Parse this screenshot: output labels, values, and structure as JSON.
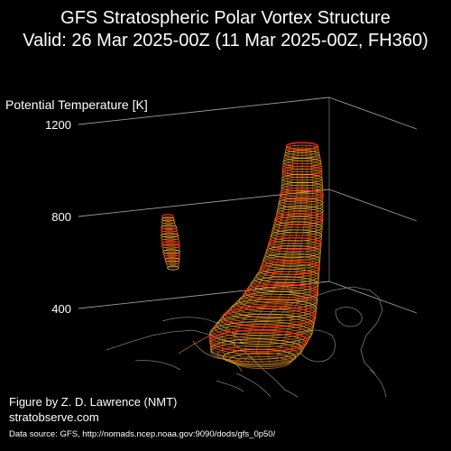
{
  "header": {
    "title_line1": "GFS Stratospheric Polar Vortex Structure",
    "title_line2": "Valid: 26 Mar 2025-00Z  (11 Mar 2025-00Z, FH360)"
  },
  "footer": {
    "credit": "Figure by Z. D. Lawrence (NMT)",
    "site": "stratobserve.com",
    "source": "Data source: GFS, http://nomads.ncep.noaa.gov:9090/dods/gfs_0p50/"
  },
  "colors": {
    "background": "#000000",
    "grid": "#9a9a9a",
    "coastline": "#7a7a7a",
    "surface_light": "#f2c23a",
    "surface_mid": "#e08a1c",
    "surface_dark": "#b85f12",
    "contour_red": "#ff1a10"
  },
  "chart_data": {
    "type": "3d-isosurface",
    "zlabel": "Potential Temperature [K]",
    "zticks": [
      "400",
      "800",
      "1200"
    ],
    "zlim": [
      400,
      1200
    ],
    "grid": true,
    "structures": [
      {
        "name": "main vortex",
        "theta_bottom": 350,
        "theta_top": 1230
      },
      {
        "name": "detached fragment",
        "theta_bottom": 700,
        "theta_top": 900
      }
    ]
  }
}
